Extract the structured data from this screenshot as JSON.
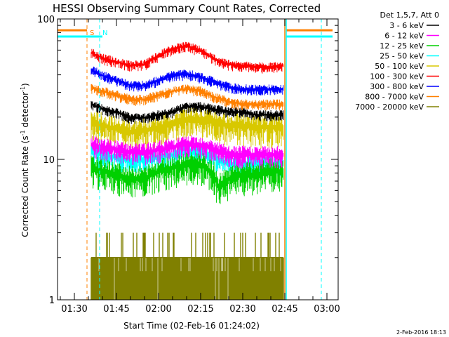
{
  "chart_data": {
    "type": "line",
    "title": "HESSI Observing Summary Count Rates, Corrected",
    "xlabel": "Start Time (02-Feb-16 01:24:02)",
    "ylabel_main": "Corrected Count Rate (s",
    "ylabel_sup": "-1",
    "ylabel_tail": " detector",
    "ylabel_end": ")",
    "yscale": "log",
    "ylim": [
      1,
      100
    ],
    "xlim": [
      "01:24",
      "03:04"
    ],
    "y_ticks": [
      {
        "value": 1,
        "label": "1"
      },
      {
        "value": 10,
        "label": "10"
      },
      {
        "value": 100,
        "label": "100"
      }
    ],
    "x_ticks": [
      {
        "minute": 90,
        "label": "01:30"
      },
      {
        "minute": 105,
        "label": "01:45"
      },
      {
        "minute": 120,
        "label": "02:00"
      },
      {
        "minute": 135,
        "label": "02:15"
      },
      {
        "minute": 150,
        "label": "02:30"
      },
      {
        "minute": 165,
        "label": "02:45"
      },
      {
        "minute": 180,
        "label": "03:00"
      }
    ],
    "legend_header": "Det 1,5,7, Att 0",
    "legend_position": "right",
    "series": [
      {
        "name": "3 - 6 keV",
        "color": "#000000",
        "x": [
          96,
          100,
          105,
          110,
          115,
          120,
          125,
          130,
          135,
          140,
          145,
          150,
          155,
          160,
          164
        ],
        "y": [
          25,
          23,
          22,
          20,
          20,
          21,
          22,
          24,
          24,
          23,
          22,
          22,
          21,
          21,
          21
        ]
      },
      {
        "name": "6 - 12 keV",
        "color": "#ff00ff",
        "x": [
          96,
          100,
          105,
          110,
          115,
          120,
          125,
          130,
          135,
          140,
          145,
          150,
          155,
          160,
          164
        ],
        "y": [
          13,
          12.5,
          12,
          11.5,
          11.5,
          12,
          12.5,
          13,
          13,
          12,
          11,
          11,
          11,
          11,
          11
        ]
      },
      {
        "name": "12 - 25 keV",
        "color": "#00d000",
        "x": [
          96,
          100,
          105,
          110,
          115,
          120,
          125,
          130,
          135,
          140,
          141,
          145,
          150,
          155,
          160,
          164
        ],
        "y": [
          9,
          8.5,
          8,
          7.5,
          7.5,
          8.5,
          9,
          9.5,
          9.5,
          8,
          6.5,
          7.5,
          8,
          8,
          8.5,
          8.5
        ]
      },
      {
        "name": "25 - 50 keV",
        "color": "#00ffff",
        "x": [
          96,
          100,
          105,
          110,
          115,
          120,
          125,
          130,
          135,
          140,
          145,
          150,
          155,
          160,
          164
        ],
        "y": [
          11.5,
          11,
          10.5,
          10,
          10,
          10.5,
          11,
          11.5,
          11.5,
          10.5,
          9.5,
          9.5,
          9.5,
          9.5,
          9.5
        ]
      },
      {
        "name": "50 - 100 keV",
        "color": "#d8c800",
        "x": [
          96,
          100,
          105,
          110,
          115,
          120,
          125,
          130,
          135,
          140,
          145,
          150,
          155,
          160,
          164
        ],
        "y": [
          19,
          18,
          17,
          16,
          16.5,
          17.5,
          18.5,
          20,
          20,
          19,
          18,
          18,
          17.5,
          17.5,
          17.5
        ]
      },
      {
        "name": "100 - 300 keV",
        "color": "#ff0000",
        "x": [
          96,
          100,
          105,
          110,
          115,
          120,
          125,
          130,
          135,
          140,
          145,
          150,
          155,
          160,
          164
        ],
        "y": [
          58,
          53,
          50,
          47,
          48,
          55,
          62,
          65,
          60,
          52,
          48,
          47,
          46,
          46,
          47
        ]
      },
      {
        "name": "300 - 800 keV",
        "color": "#0000ff",
        "x": [
          96,
          100,
          105,
          110,
          115,
          120,
          125,
          130,
          135,
          140,
          145,
          150,
          155,
          160,
          164
        ],
        "y": [
          44,
          40,
          37,
          34,
          34,
          37,
          40,
          41,
          39,
          36,
          33,
          32,
          32,
          32,
          32
        ]
      },
      {
        "name": "800 - 7000 keV",
        "color": "#ff8000",
        "x": [
          96,
          100,
          105,
          110,
          115,
          120,
          125,
          130,
          135,
          140,
          145,
          150,
          155,
          160,
          164
        ],
        "y": [
          33,
          31,
          29,
          27,
          27,
          29,
          31,
          32,
          31,
          28,
          26,
          25,
          25,
          25,
          25
        ]
      },
      {
        "name": "7000 - 20000 keV",
        "color": "#808000",
        "x": [
          96,
          100,
          105,
          110,
          115,
          120,
          125,
          130,
          135,
          140,
          145,
          150,
          155,
          160,
          164
        ],
        "y": [
          2,
          2,
          2,
          2,
          2,
          2,
          2,
          2,
          2,
          2,
          2,
          2,
          2,
          2,
          2
        ]
      }
    ],
    "markers": [
      {
        "label": "S",
        "minute": 94.5,
        "color": "#ff8000"
      },
      {
        "label": "N",
        "minute": 99,
        "color": "#00ffff"
      }
    ],
    "end_markers": [
      {
        "minute": 165,
        "color": "#ff8000"
      },
      {
        "minute": 165.5,
        "color": "#00ffff"
      },
      {
        "minute": 178,
        "color": "#ff8000"
      },
      {
        "minute": 178,
        "color": "#00ffff"
      }
    ],
    "flag_bars": [
      {
        "x_from": 84,
        "x_to": 94.5,
        "value": 83,
        "color": "#ff8000"
      },
      {
        "x_from": 84,
        "x_to": 100,
        "value": 75,
        "color": "#00ffff"
      },
      {
        "x_from": 165.5,
        "x_to": 182,
        "value": 83,
        "color": "#ff8000"
      },
      {
        "x_from": 165.5,
        "x_to": 182,
        "value": 75,
        "color": "#00ffff"
      }
    ],
    "timestamp": "2-Feb-2016 18:13"
  }
}
